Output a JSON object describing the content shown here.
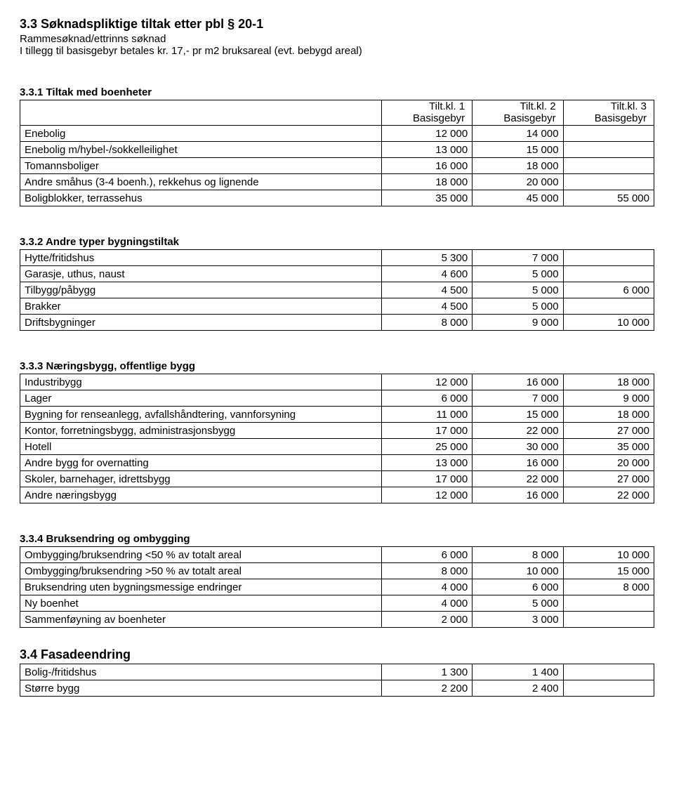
{
  "section33": {
    "title": "3.3 Søknadspliktige tiltak etter pbl § 20-1",
    "line1": "Rammesøknad/ettrinns søknad",
    "line2": "I tillegg til basisgebyr betales kr. 17,- pr m2 bruksareal (evt. bebygd areal)"
  },
  "section331": {
    "title": "3.3.1 Tiltak med boenheter",
    "headers": {
      "c1_top": "Tilt.kl. 1",
      "c1_bot": "Basisgebyr",
      "c2_top": "Tilt.kl. 2",
      "c2_bot": "Basisgebyr",
      "c3_top": "Tilt.kl. 3",
      "c3_bot": "Basisgebyr"
    },
    "rows": [
      {
        "label": "Enebolig",
        "v": [
          "12 000",
          "14 000",
          ""
        ]
      },
      {
        "label": "Enebolig m/hybel-/sokkelleilighet",
        "v": [
          "13 000",
          "15 000",
          ""
        ]
      },
      {
        "label": "Tomannsboliger",
        "v": [
          "16 000",
          "18 000",
          ""
        ]
      },
      {
        "label": "Andre småhus (3-4 boenh.), rekkehus og lignende",
        "v": [
          "18 000",
          "20 000",
          ""
        ]
      },
      {
        "label": "Boligblokker, terrassehus",
        "v": [
          "35 000",
          "45 000",
          "55 000"
        ]
      }
    ]
  },
  "section332": {
    "title": "3.3.2 Andre typer bygningstiltak",
    "rows": [
      {
        "label": "Hytte/fritidshus",
        "v": [
          "5 300",
          "7 000",
          ""
        ]
      },
      {
        "label": "Garasje, uthus, naust",
        "v": [
          "4 600",
          "5 000",
          ""
        ]
      },
      {
        "label": "Tilbygg/påbygg",
        "v": [
          "4 500",
          "5 000",
          "6 000"
        ]
      },
      {
        "label": "Brakker",
        "v": [
          "4 500",
          "5 000",
          ""
        ]
      },
      {
        "label": "Driftsbygninger",
        "v": [
          "8 000",
          "9 000",
          "10 000"
        ]
      }
    ]
  },
  "section333": {
    "title": "3.3.3 Næringsbygg, offentlige bygg",
    "rows": [
      {
        "label": "Industribygg",
        "v": [
          "12 000",
          "16 000",
          "18 000"
        ]
      },
      {
        "label": "Lager",
        "v": [
          "6 000",
          "7 000",
          "9 000"
        ]
      },
      {
        "label": "Bygning for renseanlegg, avfallshåndtering, vannforsyning",
        "v": [
          "11 000",
          "15 000",
          "18 000"
        ]
      },
      {
        "label": "Kontor, forretningsbygg, administrasjonsbygg",
        "v": [
          "17 000",
          "22 000",
          "27 000"
        ]
      },
      {
        "label": "Hotell",
        "v": [
          "25 000",
          "30 000",
          "35 000"
        ]
      },
      {
        "label": "Andre bygg for overnatting",
        "v": [
          "13 000",
          "16 000",
          "20 000"
        ]
      },
      {
        "label": "Skoler, barnehager, idrettsbygg",
        "v": [
          "17 000",
          "22 000",
          "27 000"
        ]
      },
      {
        "label": "Andre næringsbygg",
        "v": [
          "12 000",
          "16 000",
          "22 000"
        ]
      }
    ]
  },
  "section334": {
    "title": "3.3.4 Bruksendring og ombygging",
    "rows": [
      {
        "label": "Ombygging/bruksendring <50 % av totalt areal",
        "v": [
          "6 000",
          "8 000",
          "10 000"
        ]
      },
      {
        "label": "Ombygging/bruksendring >50 % av totalt areal",
        "v": [
          "8 000",
          "10 000",
          "15 000"
        ]
      },
      {
        "label": "Bruksendring uten bygningsmessige endringer",
        "v": [
          "4 000",
          "6 000",
          "8 000"
        ]
      },
      {
        "label": "Ny boenhet",
        "v": [
          "4 000",
          "5 000",
          ""
        ]
      },
      {
        "label": "Sammenføyning av boenheter",
        "v": [
          "2 000",
          "3 000",
          ""
        ]
      }
    ]
  },
  "section34": {
    "title": "3.4 Fasadeendring",
    "rows": [
      {
        "label": "Bolig-/fritidshus",
        "v": [
          "1 300",
          "1 400",
          ""
        ]
      },
      {
        "label": "Større bygg",
        "v": [
          "2 200",
          "2 400",
          ""
        ]
      }
    ]
  }
}
